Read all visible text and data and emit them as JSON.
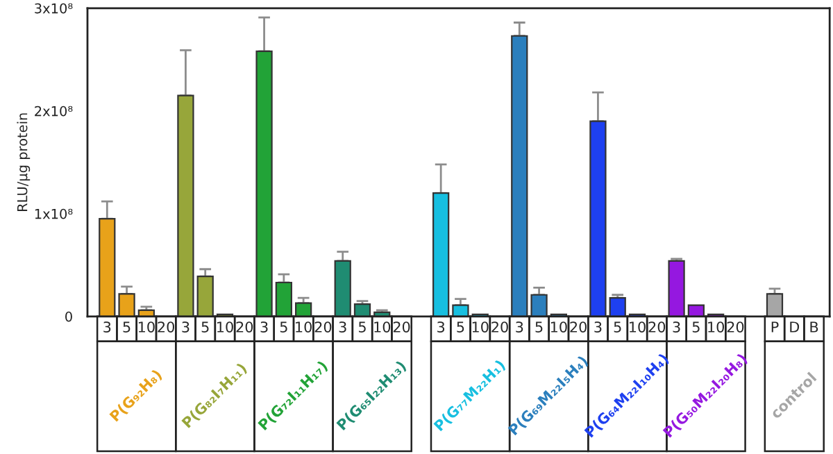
{
  "chart_data": {
    "type": "bar",
    "ylabel": "RLU/μg protein",
    "legend": "bottom",
    "categories": [
      "3",
      "5",
      "10",
      "20",
      "3",
      "5",
      "10",
      "20",
      "3",
      "5",
      "10",
      "20",
      "3",
      "5",
      "10",
      "20",
      null,
      "3",
      "5",
      "10",
      "20",
      "3",
      "5",
      "10",
      "20",
      "3",
      "5",
      "10",
      "20",
      "3",
      "5",
      "10",
      "20",
      null,
      "P",
      "D",
      "B"
    ],
    "ylim": [
      0,
      300000000
    ],
    "yticks": [
      {
        "value": 0,
        "label": "0"
      },
      {
        "value": 100000000,
        "label": "1x10⁸"
      },
      {
        "value": 200000000,
        "label": "2x10⁸"
      },
      {
        "value": 300000000,
        "label": "3x10⁸"
      }
    ],
    "series": [
      {
        "name": "P(G₉₂H₈)",
        "color": "#e8a21a",
        "values": [
          95000000,
          22000000,
          6000000,
          null,
          null,
          null,
          null,
          null,
          null,
          null,
          null,
          null,
          null,
          null,
          null,
          null,
          null,
          null,
          null,
          null,
          null,
          null,
          null,
          null,
          null,
          null,
          null,
          null,
          null,
          null,
          null,
          null,
          null,
          null,
          null,
          null,
          null
        ],
        "errors": [
          [
            95000000,
            112000000
          ],
          [
            22000000,
            29000000
          ],
          [
            6000000,
            9500000
          ],
          null,
          null,
          null,
          null,
          null,
          null,
          null,
          null,
          null,
          null,
          null,
          null,
          null,
          null,
          null,
          null,
          null,
          null,
          null,
          null,
          null,
          null,
          null,
          null,
          null,
          null,
          null,
          null,
          null,
          null,
          null,
          null,
          null,
          null
        ]
      },
      {
        "name": "P(G₈₂I₇H₁₁)",
        "color": "#97a63a",
        "values": [
          null,
          null,
          null,
          null,
          215000000,
          39000000,
          2000000,
          null,
          null,
          null,
          null,
          null,
          null,
          null,
          null,
          null,
          null,
          null,
          null,
          null,
          null,
          null,
          null,
          null,
          null,
          null,
          null,
          null,
          null,
          null,
          null,
          null,
          null,
          null,
          null,
          null,
          null
        ],
        "errors": [
          null,
          null,
          null,
          null,
          [
            215000000,
            259000000
          ],
          [
            39000000,
            46000000
          ],
          null,
          null,
          null,
          null,
          null,
          null,
          null,
          null,
          null,
          null,
          null,
          null,
          null,
          null,
          null,
          null,
          null,
          null,
          null,
          null,
          null,
          null,
          null,
          null,
          null,
          null,
          null,
          null,
          null,
          null,
          null
        ]
      },
      {
        "name": "P(G₇₂I₁₁H₁₇)",
        "color": "#22a337",
        "values": [
          null,
          null,
          null,
          null,
          null,
          null,
          null,
          null,
          258000000,
          33000000,
          13000000,
          null,
          null,
          null,
          null,
          null,
          null,
          null,
          null,
          null,
          null,
          null,
          null,
          null,
          null,
          null,
          null,
          null,
          null,
          null,
          null,
          null,
          null,
          null,
          null,
          null,
          null
        ],
        "errors": [
          null,
          null,
          null,
          null,
          null,
          null,
          null,
          null,
          [
            258000000,
            291000000
          ],
          [
            33000000,
            41000000
          ],
          [
            13000000,
            18000000
          ],
          null,
          null,
          null,
          null,
          null,
          null,
          null,
          null,
          null,
          null,
          null,
          null,
          null,
          null,
          null,
          null,
          null,
          null,
          null,
          null,
          null,
          null,
          null,
          null,
          null,
          null
        ]
      },
      {
        "name": "P(G₆₅I₂₂H₁₃)",
        "color": "#1f8c72",
        "values": [
          null,
          null,
          null,
          null,
          null,
          null,
          null,
          null,
          null,
          null,
          null,
          null,
          54000000,
          12000000,
          4000000,
          null,
          null,
          null,
          null,
          null,
          null,
          null,
          null,
          null,
          null,
          null,
          null,
          null,
          null,
          null,
          null,
          null,
          null,
          null,
          null,
          null,
          null
        ],
        "errors": [
          null,
          null,
          null,
          null,
          null,
          null,
          null,
          null,
          null,
          null,
          null,
          null,
          [
            54000000,
            63000000
          ],
          [
            12000000,
            15000000
          ],
          [
            4000000,
            6000000
          ],
          null,
          null,
          null,
          null,
          null,
          null,
          null,
          null,
          null,
          null,
          null,
          null,
          null,
          null,
          null,
          null,
          null,
          null,
          null,
          null,
          null,
          null
        ]
      },
      {
        "name": "P(G₇₇M₂₂H₁)",
        "color": "#17bfe0",
        "values": [
          null,
          null,
          null,
          null,
          null,
          null,
          null,
          null,
          null,
          null,
          null,
          null,
          null,
          null,
          null,
          null,
          null,
          120000000,
          11000000,
          2000000,
          null,
          null,
          null,
          null,
          null,
          null,
          null,
          null,
          null,
          null,
          null,
          null,
          null,
          null,
          null,
          null,
          null
        ],
        "errors": [
          null,
          null,
          null,
          null,
          null,
          null,
          null,
          null,
          null,
          null,
          null,
          null,
          null,
          null,
          null,
          null,
          null,
          [
            120000000,
            148000000
          ],
          [
            11000000,
            17000000
          ],
          null,
          null,
          null,
          null,
          null,
          null,
          null,
          null,
          null,
          null,
          null,
          null,
          null,
          null,
          null,
          null,
          null,
          null
        ]
      },
      {
        "name": "P(G₆₉M₂₂I₅H₄)",
        "color": "#2b7fbd",
        "values": [
          null,
          null,
          null,
          null,
          null,
          null,
          null,
          null,
          null,
          null,
          null,
          null,
          null,
          null,
          null,
          null,
          null,
          null,
          null,
          null,
          null,
          273000000,
          21000000,
          2000000,
          null,
          null,
          null,
          null,
          null,
          null,
          null,
          null,
          null,
          null,
          null,
          null,
          null
        ],
        "errors": [
          null,
          null,
          null,
          null,
          null,
          null,
          null,
          null,
          null,
          null,
          null,
          null,
          null,
          null,
          null,
          null,
          null,
          null,
          null,
          null,
          null,
          [
            273000000,
            286000000
          ],
          [
            21000000,
            28000000
          ],
          null,
          null,
          null,
          null,
          null,
          null,
          null,
          null,
          null,
          null,
          null,
          null,
          null,
          null
        ]
      },
      {
        "name": "P(G₆₄M₂₂I₁₀H₄)",
        "color": "#1e40f0",
        "values": [
          null,
          null,
          null,
          null,
          null,
          null,
          null,
          null,
          null,
          null,
          null,
          null,
          null,
          null,
          null,
          null,
          null,
          null,
          null,
          null,
          null,
          null,
          null,
          null,
          null,
          190000000,
          18000000,
          2000000,
          null,
          null,
          null,
          null,
          null,
          null,
          null,
          null,
          null
        ],
        "errors": [
          null,
          null,
          null,
          null,
          null,
          null,
          null,
          null,
          null,
          null,
          null,
          null,
          null,
          null,
          null,
          null,
          null,
          null,
          null,
          null,
          null,
          null,
          null,
          null,
          null,
          [
            190000000,
            218000000
          ],
          [
            18000000,
            21000000
          ],
          null,
          null,
          null,
          null,
          null,
          null,
          null,
          null,
          null,
          null
        ]
      },
      {
        "name": "P(G₅₀M₂₂I₂₀H₈)",
        "color": "#9518e0",
        "values": [
          null,
          null,
          null,
          null,
          null,
          null,
          null,
          null,
          null,
          null,
          null,
          null,
          null,
          null,
          null,
          null,
          null,
          null,
          null,
          null,
          null,
          null,
          null,
          null,
          null,
          null,
          null,
          null,
          null,
          54000000,
          11000000,
          2000000,
          null,
          null,
          null,
          null,
          null
        ],
        "errors": [
          null,
          null,
          null,
          null,
          null,
          null,
          null,
          null,
          null,
          null,
          null,
          null,
          null,
          null,
          null,
          null,
          null,
          null,
          null,
          null,
          null,
          null,
          null,
          null,
          null,
          null,
          null,
          null,
          null,
          [
            54000000,
            56000000
          ],
          null,
          null,
          null,
          null,
          null,
          null,
          null
        ]
      },
      {
        "name": "control",
        "color": "#a6a6a6",
        "values": [
          null,
          null,
          null,
          null,
          null,
          null,
          null,
          null,
          null,
          null,
          null,
          null,
          null,
          null,
          null,
          null,
          null,
          null,
          null,
          null,
          null,
          null,
          null,
          null,
          null,
          null,
          null,
          null,
          null,
          null,
          null,
          null,
          null,
          null,
          22000000,
          null,
          null
        ],
        "errors": [
          null,
          null,
          null,
          null,
          null,
          null,
          null,
          null,
          null,
          null,
          null,
          null,
          null,
          null,
          null,
          null,
          null,
          null,
          null,
          null,
          null,
          null,
          null,
          null,
          null,
          null,
          null,
          null,
          null,
          null,
          null,
          null,
          null,
          null,
          [
            22000000,
            27000000
          ],
          null,
          null
        ]
      }
    ]
  }
}
